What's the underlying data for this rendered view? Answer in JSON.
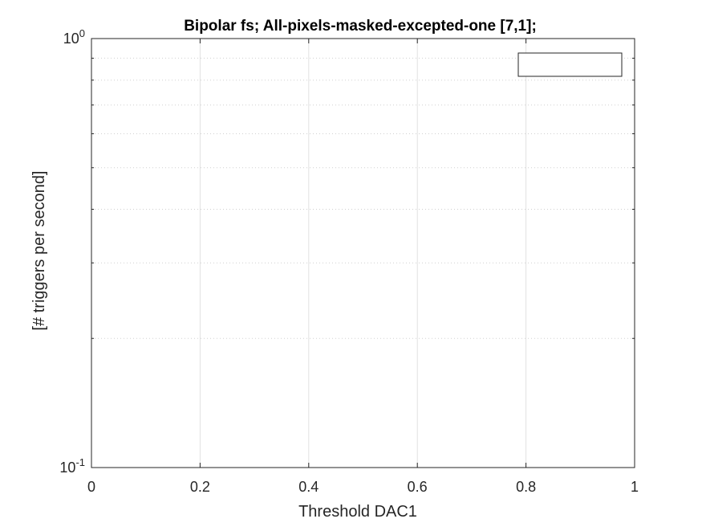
{
  "chart_data": {
    "type": "line",
    "title": "Bipolar fs; All-pixels-masked-excepted-one [7,1];",
    "xlabel": "Threshold DAC1",
    "ylabel": "[# triggers per second]",
    "xlim": [
      0,
      1
    ],
    "ylim": [
      0.1,
      1
    ],
    "yscale": "log",
    "grid": true,
    "legend_placement": "top-right",
    "legend_entries": [],
    "series": [],
    "x_ticks": [
      {
        "value": 0,
        "label": "0"
      },
      {
        "value": 0.2,
        "label": "0.2"
      },
      {
        "value": 0.4,
        "label": "0.4"
      },
      {
        "value": 0.6,
        "label": "0.6"
      },
      {
        "value": 0.8,
        "label": "0.8"
      },
      {
        "value": 1,
        "label": "1"
      }
    ],
    "y_ticks": [
      {
        "value": 0.1,
        "base": "10",
        "exp": "-1"
      },
      {
        "value": 1,
        "base": "10",
        "exp": "0"
      }
    ]
  }
}
